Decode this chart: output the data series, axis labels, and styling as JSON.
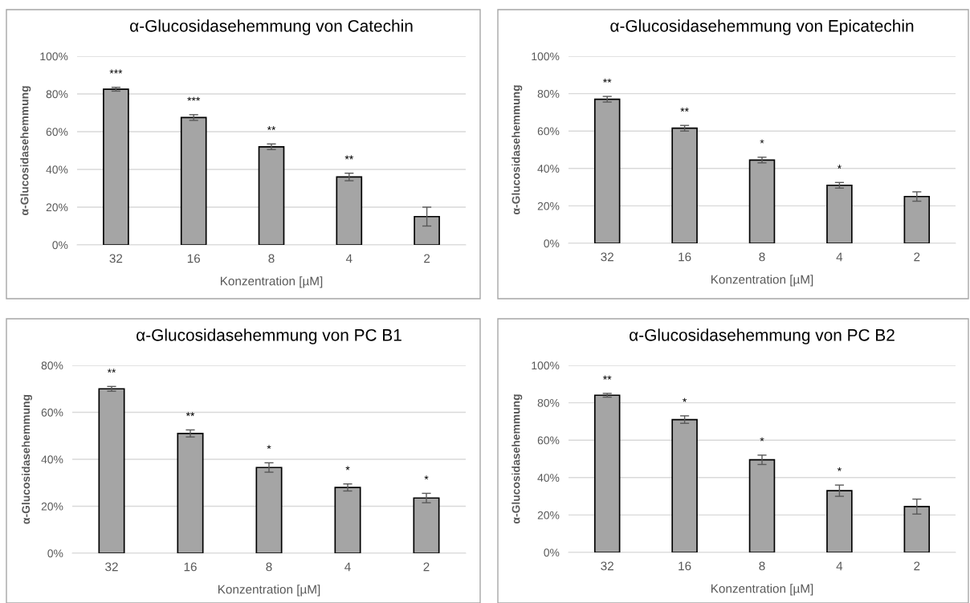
{
  "chart_data": [
    {
      "type": "bar",
      "title": "α-Glucosidasehemmung von Catechin",
      "xlabel": "Konzentration [µM]",
      "ylabel": "α-Glucosidasehemmung",
      "categories": [
        "32",
        "16",
        "8",
        "4",
        "2"
      ],
      "color": "#a5a5a5",
      "values": [
        82.5,
        67.5,
        52,
        36,
        15
      ],
      "errors": [
        1,
        1.5,
        1.5,
        2,
        5
      ],
      "ylim": [
        0,
        100
      ],
      "yticks": [
        {
          "value": 0,
          "label": "0%"
        },
        {
          "value": 20,
          "label": "20%"
        },
        {
          "value": 40,
          "label": "40%"
        },
        {
          "value": 60,
          "label": "60%"
        },
        {
          "value": 80,
          "label": "80%"
        },
        {
          "value": 100,
          "label": "100%"
        }
      ],
      "grid": "y",
      "annotations": [
        {
          "text": "***",
          "x": "32",
          "y": 83.5
        },
        {
          "text": "***",
          "x": "16",
          "y": 69
        },
        {
          "text": "**",
          "x": "8",
          "y": 53.5
        },
        {
          "text": "**",
          "x": "4",
          "y": 38
        }
      ]
    },
    {
      "type": "bar",
      "title": "α-Glucosidasehemmung von Epicatechin",
      "xlabel": "Konzentration [µM]",
      "ylabel": "α-Glucosidasehemmung",
      "categories": [
        "32",
        "16",
        "8",
        "4",
        "2"
      ],
      "color": "#a5a5a5",
      "values": [
        77,
        61.5,
        44.5,
        31,
        25
      ],
      "errors": [
        1.5,
        1.5,
        1.5,
        1.5,
        2.5
      ],
      "ylim": [
        0,
        100
      ],
      "yticks": [
        {
          "value": 0,
          "label": "0%"
        },
        {
          "value": 20,
          "label": "20%"
        },
        {
          "value": 40,
          "label": "40%"
        },
        {
          "value": 60,
          "label": "60%"
        },
        {
          "value": 80,
          "label": "80%"
        },
        {
          "value": 100,
          "label": "100%"
        }
      ],
      "grid": "y",
      "annotations": [
        {
          "text": "**",
          "x": "32",
          "y": 78.5
        },
        {
          "text": "**",
          "x": "16",
          "y": 63
        },
        {
          "text": "*",
          "x": "8",
          "y": 46
        },
        {
          "text": "*",
          "x": "4",
          "y": 32.5
        }
      ]
    },
    {
      "type": "bar",
      "title": "α-Glucosidasehemmung von PC B1",
      "xlabel": "Konzentration [µM]",
      "ylabel": "α-Glucosidasehemmung",
      "categories": [
        "32",
        "16",
        "8",
        "4",
        "2"
      ],
      "color": "#a5a5a5",
      "values": [
        70,
        51,
        36.5,
        28,
        23.5
      ],
      "errors": [
        1,
        1.5,
        2,
        1.5,
        2
      ],
      "ylim": [
        0,
        80
      ],
      "yticks": [
        {
          "value": 0,
          "label": "0%"
        },
        {
          "value": 20,
          "label": "20%"
        },
        {
          "value": 40,
          "label": "40%"
        },
        {
          "value": 60,
          "label": "60%"
        },
        {
          "value": 80,
          "label": "80%"
        }
      ],
      "grid": "y",
      "annotations": [
        {
          "text": "**",
          "x": "32",
          "y": 71
        },
        {
          "text": "**",
          "x": "16",
          "y": 52.5
        },
        {
          "text": "*",
          "x": "8",
          "y": 38.5
        },
        {
          "text": "*",
          "x": "4",
          "y": 29.5
        },
        {
          "text": "*",
          "x": "2",
          "y": 25.5
        }
      ]
    },
    {
      "type": "bar",
      "title": "α-Glucosidasehemmung von PC B2",
      "xlabel": "Konzentration [µM]",
      "ylabel": "α-Glucosidasehemmung",
      "categories": [
        "32",
        "16",
        "8",
        "4",
        "2"
      ],
      "color": "#a5a5a5",
      "values": [
        84,
        71,
        49.5,
        33,
        24.5
      ],
      "errors": [
        1,
        2,
        2.5,
        3,
        4
      ],
      "ylim": [
        0,
        100
      ],
      "yticks": [
        {
          "value": 0,
          "label": "0%"
        },
        {
          "value": 20,
          "label": "20%"
        },
        {
          "value": 40,
          "label": "40%"
        },
        {
          "value": 60,
          "label": "60%"
        },
        {
          "value": 80,
          "label": "80%"
        },
        {
          "value": 100,
          "label": "100%"
        }
      ],
      "grid": "y",
      "annotations": [
        {
          "text": "**",
          "x": "32",
          "y": 85
        },
        {
          "text": "*",
          "x": "16",
          "y": 73
        },
        {
          "text": "*",
          "x": "8",
          "y": 52
        },
        {
          "text": "*",
          "x": "4",
          "y": 36
        }
      ]
    }
  ]
}
